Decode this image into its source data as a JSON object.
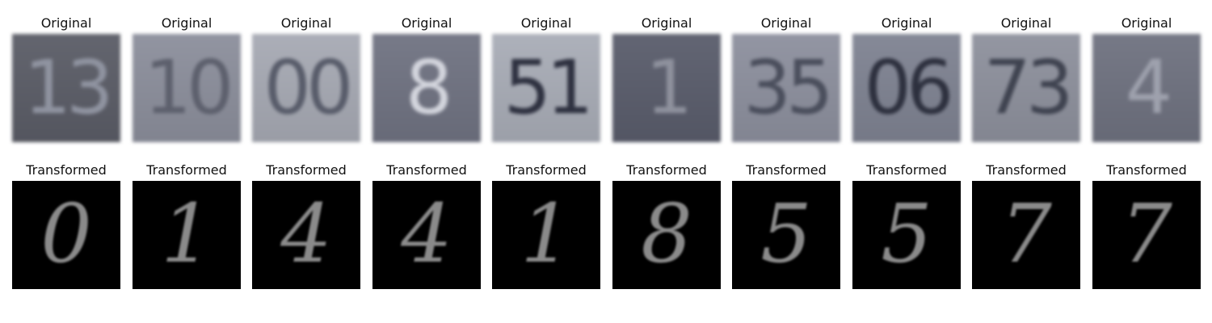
{
  "row_titles": {
    "top": "Original",
    "bottom": "Transformed"
  },
  "columns": [
    {
      "original_digits": "13",
      "original_bg": "#5b5d67",
      "original_fg": "#8f93a0",
      "transformed_digit": "0"
    },
    {
      "original_digits": "10",
      "original_bg": "#8c8f9c",
      "original_fg": "#5d606d",
      "transformed_digit": "1"
    },
    {
      "original_digits": "00",
      "original_bg": "#a7aab4",
      "original_fg": "#585c6a",
      "transformed_digit": "4"
    },
    {
      "original_digits": "8",
      "original_bg": "#707382",
      "original_fg": "#d3d5dd",
      "transformed_digit": "4"
    },
    {
      "original_digits": "51",
      "original_bg": "#a9adb7",
      "original_fg": "#2e3140",
      "transformed_digit": "1"
    },
    {
      "original_digits": "1",
      "original_bg": "#5a5d6c",
      "original_fg": "#8e919d",
      "transformed_digit": "8"
    },
    {
      "original_digits": "35",
      "original_bg": "#8d909e",
      "original_fg": "#4a4e5c",
      "transformed_digit": "5"
    },
    {
      "original_digits": "06",
      "original_bg": "#7f8392",
      "original_fg": "#2d303e",
      "transformed_digit": "5"
    },
    {
      "original_digits": "73",
      "original_bg": "#8e919d",
      "original_fg": "#3f4350",
      "transformed_digit": "7"
    },
    {
      "original_digits": "4",
      "original_bg": "#6f7280",
      "original_fg": "#9ea1ad",
      "transformed_digit": "7"
    }
  ]
}
